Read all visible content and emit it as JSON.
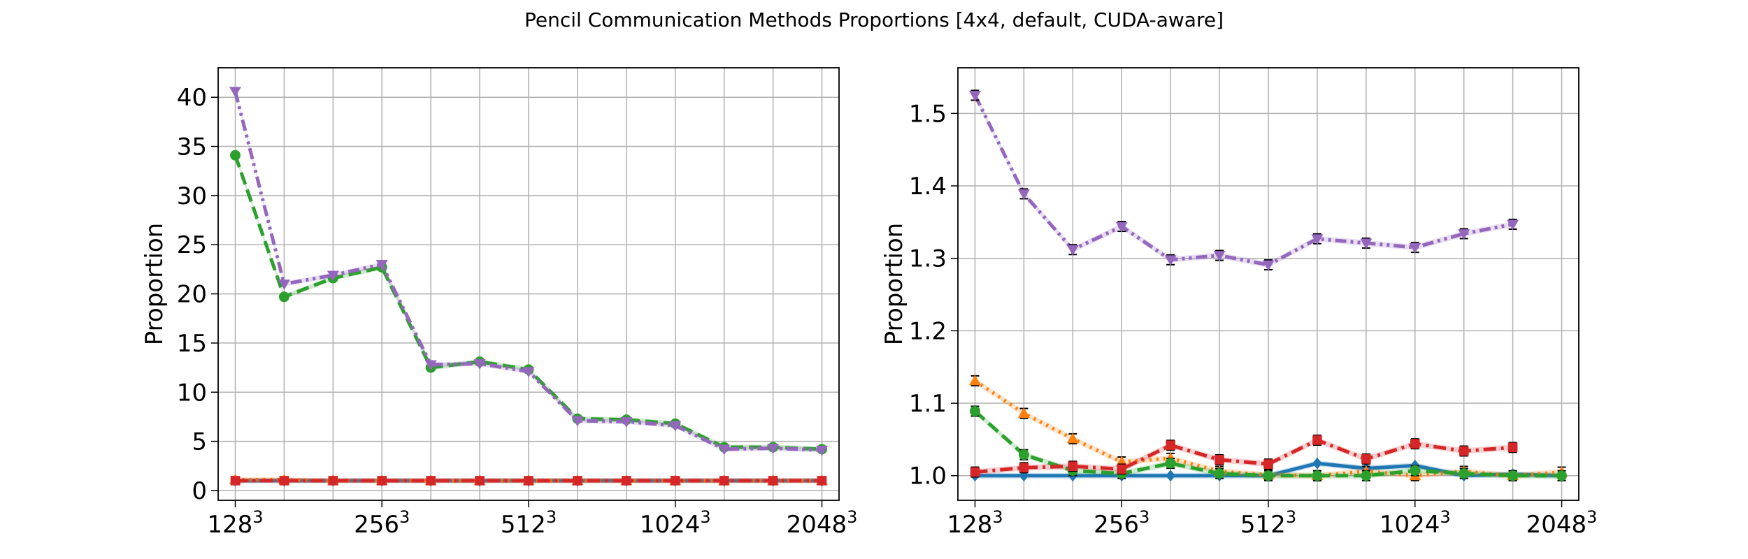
{
  "title": "Pencil Communication Methods Proportions [4x4, default, CUDA-aware]",
  "chart_data": [
    {
      "type": "line",
      "ylabel": "Proportion",
      "xlabel": "",
      "grid": true,
      "xlim": [
        -0.35,
        12.35
      ],
      "ylim": [
        -1.0,
        43.0
      ],
      "yticks": [
        0,
        5,
        10,
        15,
        20,
        25,
        30,
        35,
        40
      ],
      "xticks": [
        {
          "pos": 0,
          "base": "128",
          "exp": "3"
        },
        {
          "pos": 3,
          "base": "256",
          "exp": "3"
        },
        {
          "pos": 6,
          "base": "512",
          "exp": "3"
        },
        {
          "pos": 9,
          "base": "1024",
          "exp": "3"
        },
        {
          "pos": 12,
          "base": "2048",
          "exp": "3"
        }
      ],
      "x": [
        0,
        1,
        2,
        3,
        4,
        5,
        6,
        7,
        8,
        9,
        10,
        11,
        12
      ],
      "series": [
        {
          "color": "#1f77b4",
          "dash": "solid",
          "marker": "diamond",
          "values": [
            1.0,
            1.0,
            1.0,
            1.0,
            1.0,
            1.0,
            1.0,
            1.0,
            1.0,
            1.0,
            1.0,
            1.0,
            1.0
          ]
        },
        {
          "color": "#ff7f0e",
          "dash": "dot",
          "marker": "triangle-up",
          "values": [
            1.1,
            1.1,
            1.0,
            1.0,
            1.0,
            1.0,
            1.0,
            1.0,
            1.0,
            1.0,
            1.0,
            1.0,
            1.0
          ]
        },
        {
          "color": "#2ca02c",
          "dash": "dash",
          "marker": "circle",
          "values": [
            34.1,
            19.7,
            21.6,
            22.7,
            12.5,
            13.1,
            12.3,
            7.3,
            7.2,
            6.8,
            4.4,
            4.4,
            4.2
          ]
        },
        {
          "color": "#d62728",
          "dash": "dashdot",
          "marker": "square",
          "values": [
            1.0,
            1.0,
            1.0,
            1.0,
            1.0,
            1.0,
            1.0,
            1.0,
            1.0,
            1.0,
            1.0,
            1.0,
            1.0
          ]
        },
        {
          "color": "#9467bd",
          "dash": "dashdotdot",
          "marker": "triangle-down",
          "values": [
            40.6,
            21.0,
            21.9,
            23.0,
            12.8,
            12.9,
            12.1,
            7.1,
            7.0,
            6.6,
            4.2,
            4.3,
            4.1
          ]
        }
      ]
    },
    {
      "type": "line",
      "ylabel": "Proportion",
      "xlabel": "",
      "grid": true,
      "xlim": [
        -0.35,
        12.35
      ],
      "ylim": [
        0.966,
        1.563
      ],
      "yticks": [
        1.0,
        1.1,
        1.2,
        1.3,
        1.4,
        1.5
      ],
      "xticks": [
        {
          "pos": 0,
          "base": "128",
          "exp": "3"
        },
        {
          "pos": 3,
          "base": "256",
          "exp": "3"
        },
        {
          "pos": 6,
          "base": "512",
          "exp": "3"
        },
        {
          "pos": 9,
          "base": "1024",
          "exp": "3"
        },
        {
          "pos": 12,
          "base": "2048",
          "exp": "3"
        }
      ],
      "x": [
        0,
        1,
        2,
        3,
        4,
        5,
        6,
        7,
        8,
        9,
        10,
        11,
        12
      ],
      "series": [
        {
          "color": "#1f77b4",
          "dash": "solid",
          "marker": "diamond",
          "values": [
            1.0,
            1.0,
            1.0,
            1.0,
            1.0,
            1.0,
            1.0,
            1.017,
            1.01,
            1.014,
            1.0,
            1.002,
            1.0
          ]
        },
        {
          "color": "#ff7f0e",
          "dash": "dot",
          "marker": "triangle-up",
          "values": [
            1.131,
            1.086,
            1.051,
            1.019,
            1.024,
            1.006,
            1.001,
            1.0,
            1.006,
            1.0,
            1.006,
            1.0,
            1.005
          ]
        },
        {
          "color": "#2ca02c",
          "dash": "dash",
          "marker": "circle",
          "values": [
            1.089,
            1.029,
            1.007,
            1.003,
            1.017,
            1.003,
            1.0,
            1.0,
            1.0,
            1.007,
            1.003,
            1.0,
            1.0
          ]
        },
        {
          "color": "#d62728",
          "dash": "dashdot",
          "marker": "square",
          "values": [
            1.005,
            1.011,
            1.013,
            1.009,
            1.042,
            1.022,
            1.016,
            1.049,
            1.023,
            1.044,
            1.034,
            1.039,
            null
          ]
        },
        {
          "color": "#9467bd",
          "dash": "dashdotdot",
          "marker": "triangle-down",
          "values": [
            1.525,
            1.389,
            1.312,
            1.344,
            1.298,
            1.304,
            1.291,
            1.327,
            1.321,
            1.315,
            1.334,
            1.347,
            null
          ]
        }
      ]
    }
  ]
}
